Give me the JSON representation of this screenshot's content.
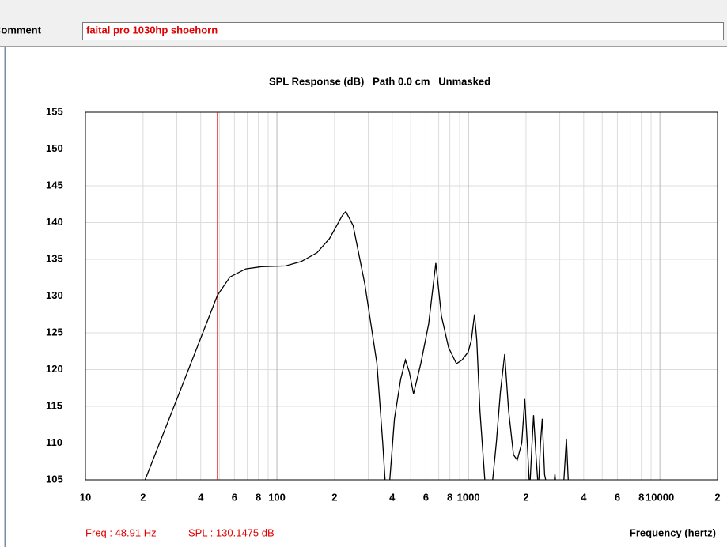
{
  "comment": {
    "label": "Comment",
    "value": "faital pro 1030hp shoehorn"
  },
  "chart_data": {
    "type": "line",
    "title": "SPL Response (dB)   Path 0.0 cm   Unmasked",
    "xlabel": "Frequency (hertz)",
    "log_x": true,
    "grid": true,
    "xlim": [
      10,
      20000
    ],
    "ylim": [
      105,
      155
    ],
    "xticks": [
      10,
      {
        "value": 20,
        "label": "2"
      },
      {
        "value": 30,
        "label": null
      },
      {
        "value": 40,
        "label": "4"
      },
      {
        "value": 50,
        "label": null
      },
      {
        "value": 60,
        "label": "6"
      },
      {
        "value": 70,
        "label": null
      },
      {
        "value": 80,
        "label": "8"
      },
      {
        "value": 90,
        "label": null
      },
      100,
      {
        "value": 200,
        "label": "2"
      },
      {
        "value": 300,
        "label": null
      },
      {
        "value": 400,
        "label": "4"
      },
      {
        "value": 500,
        "label": null
      },
      {
        "value": 600,
        "label": "6"
      },
      {
        "value": 700,
        "label": null
      },
      {
        "value": 800,
        "label": "8"
      },
      {
        "value": 900,
        "label": null
      },
      1000,
      {
        "value": 2000,
        "label": "2"
      },
      {
        "value": 3000,
        "label": null
      },
      {
        "value": 4000,
        "label": "4"
      },
      {
        "value": 5000,
        "label": null
      },
      {
        "value": 6000,
        "label": "6"
      },
      {
        "value": 7000,
        "label": null
      },
      {
        "value": 8000,
        "label": "8"
      },
      {
        "value": 9000,
        "label": null
      },
      10000,
      {
        "value": 20000,
        "label": "2"
      }
    ],
    "yticks": [
      105,
      110,
      115,
      120,
      125,
      130,
      135,
      140,
      145,
      150,
      155
    ],
    "series": [
      {
        "color": "#000000",
        "x": [
          18,
          20.5,
          32.1,
          48.91,
          56.9,
          68.8,
          83.2,
          111,
          134,
          162,
          188,
          220,
          229,
          250,
          288,
          333,
          357,
          370,
          385,
          411,
          443,
          469,
          491,
          517,
          564,
          620,
          676,
          723,
          788,
          866,
          926,
          998,
          1036,
          1076,
          1106,
          1149,
          1229,
          1323,
          1400,
          1470,
          1547,
          1622,
          1720,
          1800,
          1900,
          1970,
          2030,
          2090,
          2150,
          2190,
          2260,
          2320,
          2380,
          2430,
          2500,
          2600,
          2780,
          2830,
          2880,
          3130,
          3250,
          3340,
          3600
        ],
        "values": [
          103,
          105,
          117.9,
          130.1,
          132.6,
          133.7,
          134.0,
          134.1,
          134.7,
          135.9,
          137.8,
          141.0,
          141.5,
          139.6,
          131.6,
          120.8,
          110,
          103.6,
          103.6,
          113.3,
          118.7,
          121.3,
          119.7,
          116.7,
          120.8,
          126.2,
          134.5,
          127.3,
          123,
          120.8,
          121.3,
          122.4,
          124,
          127.5,
          124,
          114.4,
          103.6,
          103.6,
          110.1,
          117,
          122.1,
          114.4,
          108.4,
          107.7,
          110,
          116,
          110,
          103.6,
          110,
          113.8,
          107.9,
          103.6,
          110,
          113.3,
          105.7,
          103.6,
          103.6,
          105.8,
          103.6,
          103.6,
          110.6,
          103.6,
          102.5
        ]
      }
    ],
    "cursor": {
      "color": "#e00000",
      "x": 48.91,
      "y": 130.1475,
      "freq_label": "Freq : 48.91 Hz",
      "spl_label": "SPL : 130.1475 dB"
    }
  }
}
